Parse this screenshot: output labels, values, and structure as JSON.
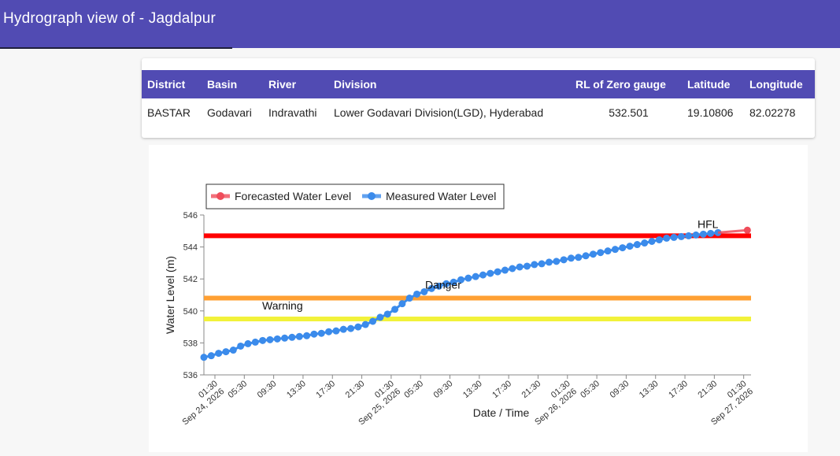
{
  "header": {
    "title": "Hydrograph view of - Jagdalpur"
  },
  "station_table": {
    "columns": [
      "District",
      "Basin",
      "River",
      "Division",
      "RL of Zero gauge",
      "Latitude",
      "Longitude"
    ],
    "row": [
      "BASTAR",
      "Godavari",
      "Indravathi",
      "Lower Godavari Division(LGD), Hyderabad",
      "532.501",
      "19.10806",
      "82.02278"
    ]
  },
  "chart_data": {
    "type": "line",
    "xlabel": "Date / Time",
    "ylabel": "Water Level (m)",
    "ylim": [
      536,
      546
    ],
    "yticks": [
      "536",
      "538",
      "540",
      "542",
      "544",
      "546"
    ],
    "xlim": [
      "2026-09-24 00:00",
      "2026-09-27 02:30"
    ],
    "xticks": [
      {
        "t": "2026-09-24 01:30",
        "label": [
          "01:30",
          "Sep 24, 2026"
        ]
      },
      {
        "t": "2026-09-24 05:30",
        "label": [
          "05:30"
        ]
      },
      {
        "t": "2026-09-24 09:30",
        "label": [
          "09:30"
        ]
      },
      {
        "t": "2026-09-24 13:30",
        "label": [
          "13:30"
        ]
      },
      {
        "t": "2026-09-24 17:30",
        "label": [
          "17:30"
        ]
      },
      {
        "t": "2026-09-24 21:30",
        "label": [
          "21:30"
        ]
      },
      {
        "t": "2026-09-25 01:30",
        "label": [
          "01:30",
          "Sep 25, 2026"
        ]
      },
      {
        "t": "2026-09-25 05:30",
        "label": [
          "05:30"
        ]
      },
      {
        "t": "2026-09-25 09:30",
        "label": [
          "09:30"
        ]
      },
      {
        "t": "2026-09-25 13:30",
        "label": [
          "13:30"
        ]
      },
      {
        "t": "2026-09-25 17:30",
        "label": [
          "17:30"
        ]
      },
      {
        "t": "2026-09-25 21:30",
        "label": [
          "21:30"
        ]
      },
      {
        "t": "2026-09-26 01:30",
        "label": [
          "01:30",
          "Sep 26, 2026"
        ]
      },
      {
        "t": "2026-09-26 05:30",
        "label": [
          "05:30"
        ]
      },
      {
        "t": "2026-09-26 09:30",
        "label": [
          "09:30"
        ]
      },
      {
        "t": "2026-09-26 13:30",
        "label": [
          "13:30"
        ]
      },
      {
        "t": "2026-09-26 17:30",
        "label": [
          "17:30"
        ]
      },
      {
        "t": "2026-09-26 21:30",
        "label": [
          "21:30"
        ]
      },
      {
        "t": "2026-09-27 01:30",
        "label": [
          "01:30",
          "Sep 27, 2026"
        ]
      }
    ],
    "legend": {
      "position": "top-left",
      "items": [
        {
          "label": "Forecasted Water Level",
          "color": "#ef4c5a"
        },
        {
          "label": "Measured Water Level",
          "color": "#3b8beb"
        }
      ]
    },
    "thresholds": [
      {
        "label": "HFL",
        "value": 544.7,
        "color": "#ff0000"
      },
      {
        "label": "Danger",
        "value": 540.8,
        "color": "#ffa033"
      },
      {
        "label": "Warning",
        "value": 539.5,
        "color": "#f2f23a"
      }
    ],
    "measured": {
      "name": "Measured Water Level",
      "color": "#3b8beb",
      "x": [
        "2026-09-24 00:00",
        "2026-09-24 01:00",
        "2026-09-24 02:00",
        "2026-09-24 03:00",
        "2026-09-24 04:00",
        "2026-09-24 05:00",
        "2026-09-24 06:00",
        "2026-09-24 07:00",
        "2026-09-24 08:00",
        "2026-09-24 09:00",
        "2026-09-24 10:00",
        "2026-09-24 11:00",
        "2026-09-24 12:00",
        "2026-09-24 13:00",
        "2026-09-24 14:00",
        "2026-09-24 15:00",
        "2026-09-24 16:00",
        "2026-09-24 17:00",
        "2026-09-24 18:00",
        "2026-09-24 19:00",
        "2026-09-24 20:00",
        "2026-09-24 21:00",
        "2026-09-24 22:00",
        "2026-09-24 23:00",
        "2026-09-25 00:00",
        "2026-09-25 01:00",
        "2026-09-25 02:00",
        "2026-09-25 03:00",
        "2026-09-25 04:00",
        "2026-09-25 05:00",
        "2026-09-25 06:00",
        "2026-09-25 07:00",
        "2026-09-25 08:00",
        "2026-09-25 09:00",
        "2026-09-25 10:00",
        "2026-09-25 11:00",
        "2026-09-25 12:00",
        "2026-09-25 13:00",
        "2026-09-25 14:00",
        "2026-09-25 15:00",
        "2026-09-25 16:00",
        "2026-09-25 17:00",
        "2026-09-25 18:00",
        "2026-09-25 19:00",
        "2026-09-25 20:00",
        "2026-09-25 21:00",
        "2026-09-25 22:00",
        "2026-09-25 23:00",
        "2026-09-26 00:00",
        "2026-09-26 01:00",
        "2026-09-26 02:00",
        "2026-09-26 03:00",
        "2026-09-26 04:00",
        "2026-09-26 05:00",
        "2026-09-26 06:00",
        "2026-09-26 07:00",
        "2026-09-26 08:00",
        "2026-09-26 09:00",
        "2026-09-26 10:00",
        "2026-09-26 11:00",
        "2026-09-26 12:00",
        "2026-09-26 13:00",
        "2026-09-26 14:00",
        "2026-09-26 15:00",
        "2026-09-26 16:00",
        "2026-09-26 17:00",
        "2026-09-26 18:00",
        "2026-09-26 19:00",
        "2026-09-26 20:00",
        "2026-09-26 21:00",
        "2026-09-26 22:00"
      ],
      "y": [
        537.1,
        537.2,
        537.35,
        537.45,
        537.55,
        537.8,
        537.95,
        538.05,
        538.15,
        538.2,
        538.25,
        538.3,
        538.35,
        538.4,
        538.45,
        538.55,
        538.6,
        538.7,
        538.75,
        538.85,
        538.9,
        539.0,
        539.15,
        539.35,
        539.6,
        539.8,
        540.1,
        540.45,
        540.8,
        541.05,
        541.2,
        541.4,
        541.55,
        541.7,
        541.8,
        541.95,
        542.05,
        542.15,
        542.25,
        542.35,
        542.45,
        542.55,
        542.65,
        542.75,
        542.8,
        542.9,
        542.95,
        543.05,
        543.1,
        543.2,
        543.3,
        543.35,
        543.45,
        543.55,
        543.65,
        543.75,
        543.85,
        543.95,
        544.05,
        544.15,
        544.25,
        544.35,
        544.45,
        544.55,
        544.6,
        544.65,
        544.7,
        544.75,
        544.8,
        544.85,
        544.9
      ]
    },
    "forecast": {
      "name": "Forecasted Water Level",
      "color": "#ef4c5a",
      "x": [
        "2026-09-26 22:00",
        "2026-09-27 02:00"
      ],
      "y": [
        544.9,
        545.05
      ]
    }
  }
}
